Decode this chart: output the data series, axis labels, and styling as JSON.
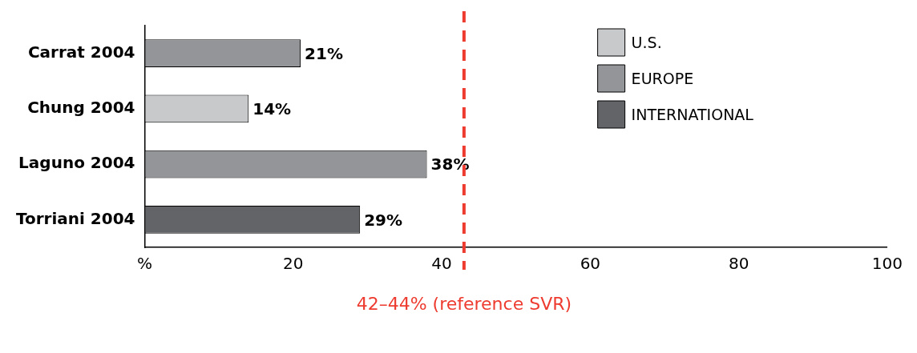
{
  "chart_data": {
    "type": "bar",
    "orientation": "horizontal",
    "stacked": true,
    "categories": [
      "Carrat 2004",
      "Chung 2004",
      "Laguno 2004",
      "Torriani 2004"
    ],
    "series": [
      {
        "name": "U.S.",
        "color": "#c8c9cb",
        "values": [
          null,
          14,
          null,
          null
        ],
        "value_labels": [
          null,
          "14%",
          null,
          null
        ]
      },
      {
        "name": "EUROPE",
        "color": "#939598",
        "values": [
          21,
          null,
          38,
          null
        ],
        "value_labels": [
          "21%",
          null,
          "38%",
          null
        ]
      },
      {
        "name": "INTERNATIONAL",
        "color": "#636467",
        "values": [
          null,
          null,
          null,
          29
        ],
        "value_labels": [
          null,
          null,
          null,
          "29%"
        ]
      }
    ],
    "xlim": [
      0,
      100
    ],
    "xticks": [
      {
        "value": 0,
        "label": "%"
      },
      20,
      40,
      60,
      80,
      100
    ],
    "ref_lines": [
      {
        "axis": "x",
        "value": 43,
        "label": "42–44% (reference SVR)",
        "color": "#ee3b2f",
        "line_style": "dashed"
      }
    ],
    "legend": "top right",
    "grid": false
  }
}
